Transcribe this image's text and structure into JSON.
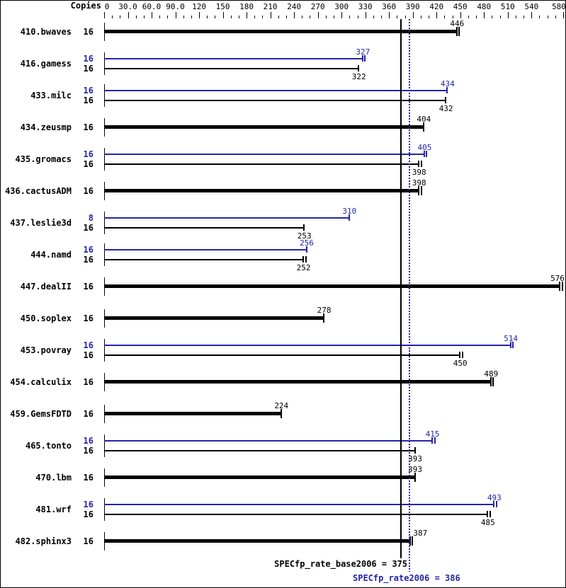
{
  "chart_data": {
    "type": "bar",
    "orientation": "horizontal",
    "copies_header": "Copies",
    "xlabel": "",
    "ylabel": "",
    "xlim": [
      0,
      580
    ],
    "grid": false,
    "colors": {
      "base": "#000000",
      "peak": "#2424aa",
      "background": "#ffffff"
    },
    "axis_major_tick_values": [
      0,
      30,
      60,
      90,
      120,
      150,
      180,
      210,
      240,
      270,
      300,
      330,
      360,
      390,
      420,
      450,
      480,
      510,
      540,
      580
    ],
    "axis_major_tick_labels": [
      "0",
      "30.0",
      "60.0",
      "90.0",
      "120",
      "150",
      "180",
      "210",
      "240",
      "270",
      "300",
      "330",
      "360",
      "390",
      "420",
      "450",
      "480",
      "510",
      "540",
      "580"
    ],
    "minor_tick_step": 10,
    "benchmarks": [
      {
        "name": "410.bwaves",
        "bars": [
          {
            "copies": "16",
            "value": 446,
            "role": "base",
            "label_side": "above",
            "end_ticks": 2
          }
        ]
      },
      {
        "name": "416.gamess",
        "bars": [
          {
            "copies": "16",
            "value": 327,
            "role": "peak",
            "label_side": "above",
            "end_ticks": 2
          },
          {
            "copies": "16",
            "value": 322,
            "role": "base",
            "label_side": "below",
            "end_ticks": 1
          }
        ]
      },
      {
        "name": "433.milc",
        "bars": [
          {
            "copies": "16",
            "value": 434,
            "role": "peak",
            "label_side": "above",
            "end_ticks": 1
          },
          {
            "copies": "16",
            "value": 432,
            "role": "base",
            "label_side": "below",
            "end_ticks": 1
          }
        ]
      },
      {
        "name": "434.zeusmp",
        "bars": [
          {
            "copies": "16",
            "value": 404,
            "role": "base",
            "label_side": "above",
            "end_ticks": 1
          }
        ]
      },
      {
        "name": "435.gromacs",
        "bars": [
          {
            "copies": "16",
            "value": 405,
            "role": "peak",
            "label_side": "above",
            "end_ticks": 2
          },
          {
            "copies": "16",
            "value": 398,
            "role": "base",
            "label_side": "below",
            "end_ticks": 2
          }
        ]
      },
      {
        "name": "436.cactusADM",
        "bars": [
          {
            "copies": "16",
            "value": 398,
            "role": "base",
            "label_side": "above",
            "end_ticks": 2
          }
        ]
      },
      {
        "name": "437.leslie3d",
        "bars": [
          {
            "copies": "8",
            "value": 310,
            "role": "peak",
            "label_side": "above",
            "end_ticks": 1
          },
          {
            "copies": "16",
            "value": 253,
            "role": "base",
            "label_side": "below",
            "end_ticks": 1
          }
        ]
      },
      {
        "name": "444.namd",
        "bars": [
          {
            "copies": "16",
            "value": 256,
            "role": "peak",
            "label_side": "above",
            "end_ticks": 1
          },
          {
            "copies": "16",
            "value": 252,
            "role": "base",
            "label_side": "below",
            "end_ticks": 2
          }
        ]
      },
      {
        "name": "447.dealII",
        "bars": [
          {
            "copies": "16",
            "value": 576,
            "role": "base",
            "label_side": "above",
            "end_ticks": 2
          }
        ]
      },
      {
        "name": "450.soplex",
        "bars": [
          {
            "copies": "16",
            "value": 278,
            "role": "base",
            "label_side": "above",
            "end_ticks": 1
          }
        ]
      },
      {
        "name": "453.povray",
        "bars": [
          {
            "copies": "16",
            "value": 514,
            "role": "peak",
            "label_side": "above",
            "end_ticks": 2
          },
          {
            "copies": "16",
            "value": 450,
            "role": "base",
            "label_side": "below",
            "end_ticks": 2
          }
        ]
      },
      {
        "name": "454.calculix",
        "bars": [
          {
            "copies": "16",
            "value": 489,
            "role": "base",
            "label_side": "above",
            "end_ticks": 2
          }
        ]
      },
      {
        "name": "459.GemsFDTD",
        "bars": [
          {
            "copies": "16",
            "value": 224,
            "role": "base",
            "label_side": "above",
            "end_ticks": 1
          }
        ]
      },
      {
        "name": "465.tonto",
        "bars": [
          {
            "copies": "16",
            "value": 415,
            "role": "peak",
            "label_side": "above",
            "end_ticks": 2
          },
          {
            "copies": "16",
            "value": 393,
            "role": "base",
            "label_side": "below",
            "end_ticks": 1
          }
        ]
      },
      {
        "name": "470.lbm",
        "bars": [
          {
            "copies": "16",
            "value": 393,
            "role": "base",
            "label_side": "above",
            "end_ticks": 1
          }
        ]
      },
      {
        "name": "481.wrf",
        "bars": [
          {
            "copies": "16",
            "value": 493,
            "role": "peak",
            "label_side": "above",
            "end_ticks": 2
          },
          {
            "copies": "16",
            "value": 485,
            "role": "base",
            "label_side": "below",
            "end_ticks": 2
          }
        ]
      },
      {
        "name": "482.sphinx3",
        "bars": [
          {
            "copies": "16",
            "value": 387,
            "role": "base",
            "label_side": "above",
            "end_ticks": 2,
            "label_dx": 14
          }
        ]
      }
    ],
    "reference_lines": [
      {
        "style": "solid",
        "color": "#000000",
        "value": 375,
        "label": "SPECfp_rate_base2006 = 375"
      },
      {
        "style": "dotted",
        "color": "#2424aa",
        "value": 386,
        "label": "SPECfp_rate2006 = 386"
      }
    ]
  }
}
